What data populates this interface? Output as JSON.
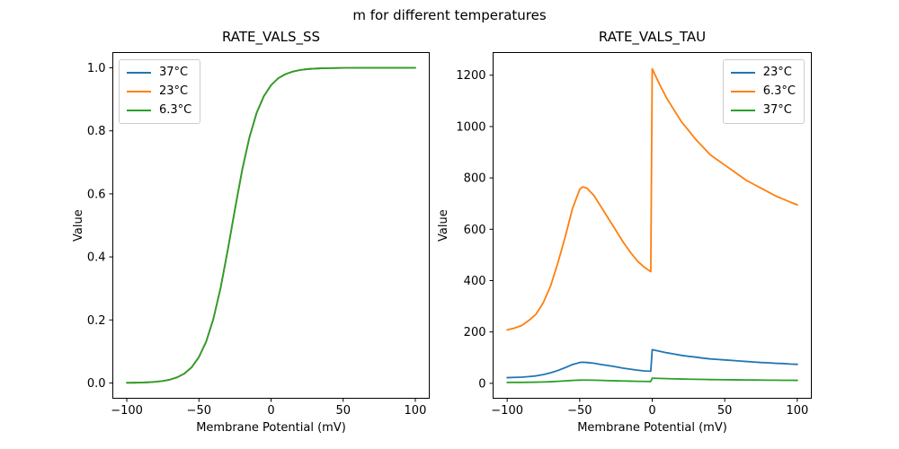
{
  "figure": {
    "suptitle": "m for different temperatures",
    "background": "#ffffff",
    "axis_color": "#000000"
  },
  "chart_data": [
    {
      "type": "line",
      "title": "RATE_VALS_SS",
      "xlabel": "Membrane Potential (mV)",
      "ylabel": "Value",
      "xlim": [
        -110,
        110
      ],
      "ylim": [
        -0.05,
        1.05
      ],
      "xticks": [
        -100,
        -50,
        0,
        50,
        100
      ],
      "xtick_labels": [
        "−100",
        "−50",
        "0",
        "50",
        "100"
      ],
      "yticks": [
        0,
        0.2,
        0.4,
        0.6,
        0.8,
        1.0
      ],
      "ytick_labels": [
        "0.0",
        "0.2",
        "0.4",
        "0.6",
        "0.8",
        "1.0"
      ],
      "grid": false,
      "legend_position": "upper-left",
      "x": [
        -100,
        -95,
        -90,
        -85,
        -80,
        -75,
        -70,
        -65,
        -60,
        -55,
        -50,
        -45,
        -40,
        -35,
        -30,
        -25,
        -20,
        -15,
        -10,
        -5,
        0,
        5,
        10,
        15,
        20,
        25,
        30,
        35,
        40,
        45,
        50,
        55,
        60,
        65,
        70,
        75,
        80,
        85,
        90,
        95,
        100
      ],
      "series": [
        {
          "name": "37°C",
          "color": "#1f77b4",
          "values": [
            0.0005,
            0.0008,
            0.0013,
            0.0022,
            0.0038,
            0.0064,
            0.0107,
            0.018,
            0.03,
            0.05,
            0.082,
            0.131,
            0.203,
            0.301,
            0.422,
            0.552,
            0.676,
            0.779,
            0.857,
            0.91,
            0.945,
            0.967,
            0.98,
            0.988,
            0.993,
            0.996,
            0.9975,
            0.9985,
            0.9991,
            0.9995,
            0.9997,
            0.9998,
            0.9999,
            0.9999,
            1.0,
            1.0,
            1.0,
            1.0,
            1.0,
            1.0,
            1.0
          ]
        },
        {
          "name": "23°C",
          "color": "#ff7f0e",
          "values": [
            0.0005,
            0.0008,
            0.0013,
            0.0022,
            0.0038,
            0.0064,
            0.0107,
            0.018,
            0.03,
            0.05,
            0.082,
            0.131,
            0.203,
            0.301,
            0.422,
            0.552,
            0.676,
            0.779,
            0.857,
            0.91,
            0.945,
            0.967,
            0.98,
            0.988,
            0.993,
            0.996,
            0.9975,
            0.9985,
            0.9991,
            0.9995,
            0.9997,
            0.9998,
            0.9999,
            0.9999,
            1.0,
            1.0,
            1.0,
            1.0,
            1.0,
            1.0,
            1.0
          ]
        },
        {
          "name": "6.3°C",
          "color": "#2ca02c",
          "values": [
            0.0005,
            0.0008,
            0.0013,
            0.0022,
            0.0038,
            0.0064,
            0.0107,
            0.018,
            0.03,
            0.05,
            0.082,
            0.131,
            0.203,
            0.301,
            0.422,
            0.552,
            0.676,
            0.779,
            0.857,
            0.91,
            0.945,
            0.967,
            0.98,
            0.988,
            0.993,
            0.996,
            0.9975,
            0.9985,
            0.9991,
            0.9995,
            0.9997,
            0.9998,
            0.9999,
            0.9999,
            1.0,
            1.0,
            1.0,
            1.0,
            1.0,
            1.0,
            1.0
          ]
        }
      ]
    },
    {
      "type": "line",
      "title": "RATE_VALS_TAU",
      "xlabel": "Membrane Potential (mV)",
      "ylabel": "Value",
      "xlim": [
        -110,
        110
      ],
      "ylim": [
        -60,
        1290
      ],
      "xticks": [
        -100,
        -50,
        0,
        50,
        100
      ],
      "xtick_labels": [
        "−100",
        "−50",
        "0",
        "50",
        "100"
      ],
      "yticks": [
        0,
        200,
        400,
        600,
        800,
        1000,
        1200
      ],
      "ytick_labels": [
        "0",
        "200",
        "400",
        "600",
        "800",
        "1000",
        "1200"
      ],
      "grid": false,
      "legend_position": "upper-right",
      "x": [
        -100,
        -95,
        -90,
        -85,
        -80,
        -75,
        -70,
        -65,
        -60,
        -55,
        -50,
        -48,
        -45,
        -40,
        -35,
        -30,
        -25,
        -20,
        -15,
        -10,
        -5,
        -1,
        0,
        5,
        10,
        15,
        20,
        25,
        30,
        35,
        40,
        45,
        50,
        55,
        60,
        65,
        70,
        75,
        80,
        85,
        90,
        95,
        100
      ],
      "series": [
        {
          "name": "23°C",
          "color": "#1f77b4",
          "values": [
            22,
            23,
            24,
            26,
            29,
            34,
            41,
            50,
            61,
            73,
            81,
            82,
            81,
            78,
            73,
            69,
            64,
            59,
            55,
            51,
            48,
            47,
            131,
            125,
            119,
            114,
            109,
            105,
            102,
            98,
            95,
            93,
            91,
            89,
            87,
            85,
            83,
            81,
            80,
            78,
            77,
            75,
            74
          ]
        },
        {
          "name": "6.3°C",
          "color": "#ff7f0e",
          "values": [
            208,
            215,
            225,
            245,
            270,
            315,
            380,
            470,
            570,
            680,
            755,
            765,
            760,
            730,
            685,
            640,
            595,
            550,
            510,
            475,
            450,
            435,
            1225,
            1165,
            1110,
            1065,
            1020,
            985,
            950,
            920,
            890,
            870,
            850,
            830,
            810,
            790,
            775,
            760,
            745,
            730,
            718,
            706,
            695
          ]
        },
        {
          "name": "37°C",
          "color": "#2ca02c",
          "values": [
            3.4,
            3.6,
            3.7,
            4.0,
            4.5,
            5.2,
            6.3,
            7.7,
            9.4,
            11.2,
            12.4,
            12.6,
            12.5,
            12.0,
            11.2,
            10.5,
            9.8,
            9.1,
            8.4,
            7.8,
            7.4,
            7.2,
            20.1,
            19.2,
            18.3,
            17.5,
            16.7,
            16.1,
            15.6,
            15.1,
            14.6,
            14.2,
            13.9,
            13.6,
            13.3,
            13.0,
            12.8,
            12.5,
            12.2,
            12.0,
            11.8,
            11.6,
            11.4
          ]
        }
      ]
    }
  ]
}
